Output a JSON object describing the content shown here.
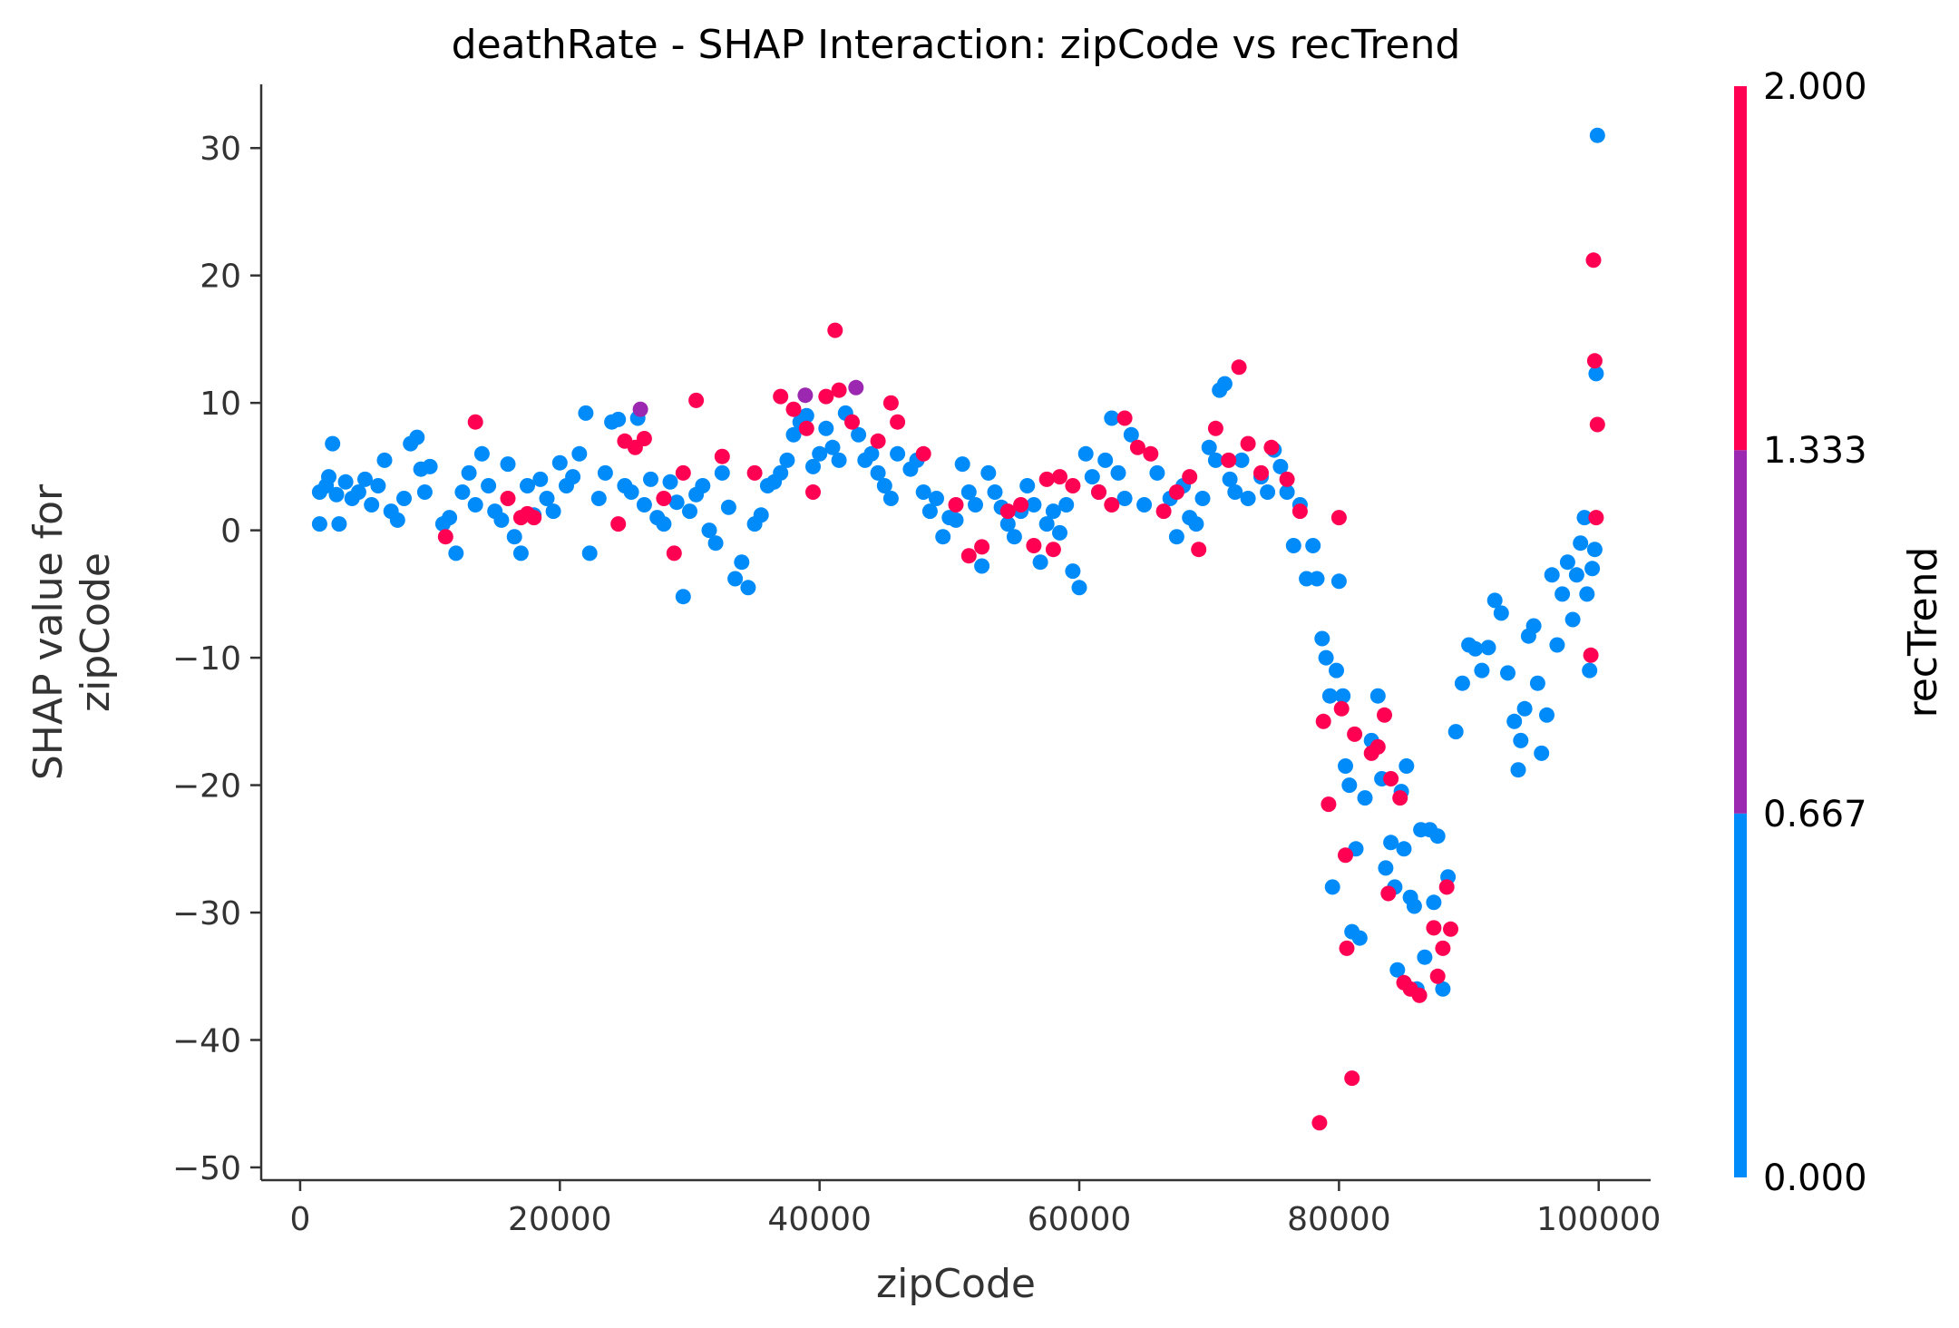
{
  "chart_data": {
    "type": "scatter",
    "title": "deathRate - SHAP Interaction: zipCode vs recTrend",
    "xlabel": "zipCode",
    "ylabel": [
      "SHAP value for",
      "zipCode"
    ],
    "xlim": [
      -3000,
      104000
    ],
    "ylim": [
      -51,
      35
    ],
    "xticks": [
      0,
      20000,
      40000,
      60000,
      80000,
      100000
    ],
    "xtick_labels": [
      "0",
      "20000",
      "40000",
      "60000",
      "80000",
      "100000"
    ],
    "yticks": [
      30,
      20,
      10,
      0,
      -10,
      -20,
      -30,
      -40,
      -50
    ],
    "ytick_labels": [
      "30",
      "20",
      "10",
      "0",
      "−10",
      "−20",
      "−30",
      "−40",
      "−50"
    ],
    "grid": false,
    "colorbar": {
      "title": "recTrend",
      "range": [
        0,
        2
      ],
      "ticks": [
        2,
        1.333,
        0.667,
        0
      ],
      "tick_labels": [
        "2.000",
        "1.333",
        "0.667",
        "0.000"
      ],
      "colors": {
        "low": "#008bfb",
        "mid": "#9c27b0",
        "high": "#ff0052"
      }
    },
    "series": [
      {
        "color_value": 0,
        "points": [
          [
            1500,
            0.5
          ],
          [
            1500,
            3
          ],
          [
            2000,
            3.5
          ],
          [
            2200,
            4.2
          ],
          [
            2500,
            6.8
          ],
          [
            2800,
            2.8
          ],
          [
            3000,
            0.5
          ],
          [
            3500,
            3.8
          ],
          [
            4000,
            2.5
          ],
          [
            4500,
            3
          ],
          [
            5000,
            4
          ],
          [
            5500,
            2
          ],
          [
            6000,
            3.5
          ],
          [
            6500,
            5.5
          ],
          [
            7000,
            1.5
          ],
          [
            7500,
            0.8
          ],
          [
            8000,
            2.5
          ],
          [
            8500,
            6.8
          ],
          [
            9000,
            7.3
          ],
          [
            9300,
            4.8
          ],
          [
            9600,
            3
          ],
          [
            10000,
            5
          ],
          [
            11000,
            0.5
          ],
          [
            11500,
            1
          ],
          [
            12000,
            -1.8
          ],
          [
            12500,
            3
          ],
          [
            13000,
            4.5
          ],
          [
            13500,
            2
          ],
          [
            14000,
            6
          ],
          [
            14500,
            3.5
          ],
          [
            15000,
            1.5
          ],
          [
            15500,
            0.8
          ],
          [
            16000,
            5.2
          ],
          [
            16500,
            -0.5
          ],
          [
            17000,
            -1.8
          ],
          [
            17500,
            3.5
          ],
          [
            18000,
            1.2
          ],
          [
            18500,
            4
          ],
          [
            19000,
            2.5
          ],
          [
            19500,
            1.5
          ],
          [
            20000,
            5.3
          ],
          [
            20500,
            3.5
          ],
          [
            21000,
            4.2
          ],
          [
            21500,
            6
          ],
          [
            22000,
            9.2
          ],
          [
            22300,
            -1.8
          ],
          [
            23000,
            2.5
          ],
          [
            23500,
            4.5
          ],
          [
            24000,
            8.5
          ],
          [
            24500,
            8.7
          ],
          [
            25000,
            3.5
          ],
          [
            25500,
            3
          ],
          [
            26000,
            8.8
          ],
          [
            26500,
            2
          ],
          [
            27000,
            4
          ],
          [
            27500,
            1
          ],
          [
            28000,
            0.5
          ],
          [
            28500,
            3.8
          ],
          [
            29000,
            2.2
          ],
          [
            29500,
            -5.2
          ],
          [
            30000,
            1.5
          ],
          [
            30500,
            2.8
          ],
          [
            31000,
            3.5
          ],
          [
            31500,
            0
          ],
          [
            32000,
            -1
          ],
          [
            32500,
            4.5
          ],
          [
            33000,
            1.8
          ],
          [
            33500,
            -3.8
          ],
          [
            34000,
            -2.5
          ],
          [
            34500,
            -4.5
          ],
          [
            35000,
            0.5
          ],
          [
            35500,
            1.2
          ],
          [
            36000,
            3.5
          ],
          [
            36500,
            3.8
          ],
          [
            37000,
            4.5
          ],
          [
            37500,
            5.5
          ],
          [
            38000,
            7.5
          ],
          [
            38500,
            8.5
          ],
          [
            39000,
            9
          ],
          [
            39500,
            5
          ],
          [
            40000,
            6
          ],
          [
            40500,
            8
          ],
          [
            41000,
            6.5
          ],
          [
            41500,
            5.5
          ],
          [
            42000,
            9.2
          ],
          [
            43000,
            7.5
          ],
          [
            43500,
            5.5
          ],
          [
            44000,
            6
          ],
          [
            44500,
            4.5
          ],
          [
            45000,
            3.5
          ],
          [
            45500,
            2.5
          ],
          [
            46000,
            6
          ],
          [
            47000,
            4.8
          ],
          [
            47500,
            5.5
          ],
          [
            48000,
            3
          ],
          [
            48500,
            1.5
          ],
          [
            49000,
            2.5
          ],
          [
            49500,
            -0.5
          ],
          [
            50000,
            1
          ],
          [
            50500,
            0.8
          ],
          [
            51000,
            5.2
          ],
          [
            51500,
            3
          ],
          [
            52000,
            2
          ],
          [
            52500,
            -2.8
          ],
          [
            53000,
            4.5
          ],
          [
            53500,
            3
          ],
          [
            54000,
            1.8
          ],
          [
            54500,
            0.5
          ],
          [
            55000,
            -0.5
          ],
          [
            55500,
            1.5
          ],
          [
            56000,
            3.5
          ],
          [
            56500,
            2
          ],
          [
            57000,
            -2.5
          ],
          [
            57500,
            0.5
          ],
          [
            58000,
            1.5
          ],
          [
            58500,
            -0.2
          ],
          [
            59000,
            2
          ],
          [
            59500,
            -3.2
          ],
          [
            60000,
            -4.5
          ],
          [
            60500,
            6
          ],
          [
            61000,
            4.2
          ],
          [
            61500,
            3
          ],
          [
            62000,
            5.5
          ],
          [
            62500,
            8.8
          ],
          [
            63000,
            4.5
          ],
          [
            63500,
            2.5
          ],
          [
            64000,
            7.5
          ],
          [
            65000,
            2
          ],
          [
            66000,
            4.5
          ],
          [
            67000,
            2.5
          ],
          [
            67500,
            -0.5
          ],
          [
            68000,
            3.5
          ],
          [
            68500,
            1
          ],
          [
            69000,
            0.5
          ],
          [
            69500,
            2.5
          ],
          [
            70000,
            6.5
          ],
          [
            70500,
            5.5
          ],
          [
            70800,
            11
          ],
          [
            71200,
            11.5
          ],
          [
            71600,
            4
          ],
          [
            72000,
            3
          ],
          [
            72500,
            5.5
          ],
          [
            73000,
            2.5
          ],
          [
            74000,
            4.2
          ],
          [
            74500,
            3
          ],
          [
            75000,
            6.3
          ],
          [
            75500,
            5
          ],
          [
            76000,
            3
          ],
          [
            76500,
            -1.2
          ],
          [
            77000,
            2
          ],
          [
            77500,
            -3.8
          ],
          [
            78000,
            -1.2
          ],
          [
            78300,
            -3.8
          ],
          [
            78700,
            -8.5
          ],
          [
            79000,
            -10
          ],
          [
            79300,
            -13
          ],
          [
            79500,
            -28
          ],
          [
            79800,
            -11
          ],
          [
            80000,
            -4
          ],
          [
            80300,
            -13
          ],
          [
            80500,
            -18.5
          ],
          [
            80800,
            -20
          ],
          [
            81000,
            -31.5
          ],
          [
            81300,
            -25
          ],
          [
            81600,
            -32
          ],
          [
            82000,
            -21
          ],
          [
            82500,
            -16.5
          ],
          [
            83000,
            -13
          ],
          [
            83300,
            -19.5
          ],
          [
            83600,
            -26.5
          ],
          [
            84000,
            -24.5
          ],
          [
            84300,
            -28
          ],
          [
            84500,
            -34.5
          ],
          [
            84800,
            -20.5
          ],
          [
            85000,
            -25
          ],
          [
            85200,
            -18.5
          ],
          [
            85500,
            -28.8
          ],
          [
            85800,
            -29.5
          ],
          [
            86000,
            -36
          ],
          [
            86300,
            -23.5
          ],
          [
            86600,
            -33.5
          ],
          [
            87000,
            -23.5
          ],
          [
            87300,
            -29.2
          ],
          [
            87600,
            -24
          ],
          [
            88000,
            -36
          ],
          [
            88400,
            -27.2
          ],
          [
            89000,
            -15.8
          ],
          [
            89500,
            -12
          ],
          [
            90000,
            -9
          ],
          [
            90500,
            -9.3
          ],
          [
            91000,
            -11
          ],
          [
            91500,
            -9.2
          ],
          [
            92000,
            -5.5
          ],
          [
            92500,
            -6.5
          ],
          [
            93000,
            -11.2
          ],
          [
            93500,
            -15
          ],
          [
            93800,
            -18.8
          ],
          [
            94000,
            -16.5
          ],
          [
            94300,
            -14
          ],
          [
            94600,
            -8.3
          ],
          [
            95000,
            -7.5
          ],
          [
            95300,
            -12
          ],
          [
            95600,
            -17.5
          ],
          [
            96000,
            -14.5
          ],
          [
            96400,
            -3.5
          ],
          [
            96800,
            -9
          ],
          [
            97200,
            -5
          ],
          [
            97600,
            -2.5
          ],
          [
            98000,
            -7
          ],
          [
            98300,
            -3.5
          ],
          [
            98600,
            -1
          ],
          [
            98900,
            1
          ],
          [
            99100,
            -5
          ],
          [
            99300,
            -11
          ],
          [
            99500,
            -3
          ],
          [
            99700,
            -1.5
          ],
          [
            99800,
            12.3
          ],
          [
            99900,
            31
          ]
        ]
      },
      {
        "color_value": 2,
        "points": [
          [
            11200,
            -0.5
          ],
          [
            13500,
            8.5
          ],
          [
            16000,
            2.5
          ],
          [
            17000,
            1
          ],
          [
            17500,
            1.3
          ],
          [
            18000,
            1
          ],
          [
            24500,
            0.5
          ],
          [
            25000,
            7
          ],
          [
            25800,
            6.5
          ],
          [
            26500,
            7.2
          ],
          [
            28000,
            2.5
          ],
          [
            28800,
            -1.8
          ],
          [
            29500,
            4.5
          ],
          [
            30500,
            10.2
          ],
          [
            32500,
            5.8
          ],
          [
            35000,
            4.5
          ],
          [
            37000,
            10.5
          ],
          [
            38000,
            9.5
          ],
          [
            39000,
            8
          ],
          [
            39500,
            3
          ],
          [
            40500,
            10.5
          ],
          [
            41200,
            15.7
          ],
          [
            41500,
            11
          ],
          [
            42500,
            8.5
          ],
          [
            44500,
            7
          ],
          [
            45500,
            10
          ],
          [
            46000,
            8.5
          ],
          [
            48000,
            6
          ],
          [
            50500,
            2
          ],
          [
            51500,
            -2
          ],
          [
            52500,
            -1.3
          ],
          [
            54500,
            1.5
          ],
          [
            55500,
            2
          ],
          [
            56500,
            -1.2
          ],
          [
            57500,
            4
          ],
          [
            58000,
            -1.5
          ],
          [
            58500,
            4.2
          ],
          [
            59500,
            3.5
          ],
          [
            61500,
            3
          ],
          [
            62500,
            2
          ],
          [
            63500,
            8.8
          ],
          [
            64500,
            6.5
          ],
          [
            65500,
            6
          ],
          [
            66500,
            1.5
          ],
          [
            67500,
            3
          ],
          [
            68500,
            4.2
          ],
          [
            69200,
            -1.5
          ],
          [
            70500,
            8
          ],
          [
            71500,
            5.5
          ],
          [
            72300,
            12.8
          ],
          [
            73000,
            6.8
          ],
          [
            74000,
            4.5
          ],
          [
            74800,
            6.5
          ],
          [
            76000,
            4
          ],
          [
            77000,
            1.5
          ],
          [
            78500,
            -46.5
          ],
          [
            78800,
            -15
          ],
          [
            79200,
            -21.5
          ],
          [
            80000,
            1
          ],
          [
            80200,
            -14
          ],
          [
            80500,
            -25.5
          ],
          [
            80600,
            -32.8
          ],
          [
            81000,
            -43
          ],
          [
            81200,
            -16
          ],
          [
            82500,
            -17.5
          ],
          [
            83000,
            -17
          ],
          [
            83500,
            -14.5
          ],
          [
            83800,
            -28.5
          ],
          [
            84000,
            -19.5
          ],
          [
            84700,
            -21
          ],
          [
            85000,
            -35.5
          ],
          [
            85500,
            -36
          ],
          [
            86200,
            -36.5
          ],
          [
            87300,
            -31.2
          ],
          [
            87600,
            -35
          ],
          [
            88000,
            -32.8
          ],
          [
            88300,
            -28
          ],
          [
            88600,
            -31.3
          ],
          [
            99400,
            -9.8
          ],
          [
            99600,
            21.2
          ],
          [
            99700,
            13.3
          ],
          [
            99800,
            1
          ],
          [
            99900,
            8.3
          ]
        ]
      },
      {
        "color_value": 1,
        "points": [
          [
            26200,
            9.5
          ],
          [
            38900,
            10.6
          ],
          [
            42800,
            11.2
          ]
        ]
      }
    ]
  }
}
